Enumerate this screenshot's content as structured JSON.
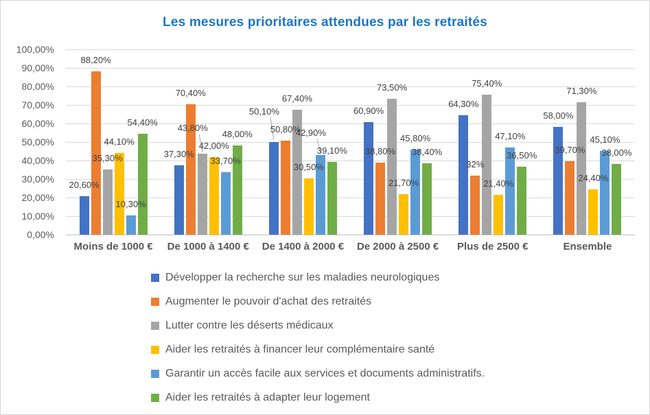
{
  "window": {
    "background": "#FFFFFF",
    "border_color": "#D6D6D6"
  },
  "chart_data": {
    "type": "bar",
    "title": "Les mesures prioritaires attendues par les retraités",
    "title_color": "#1B76C6",
    "xlabel": "",
    "ylabel": "",
    "ylim": [
      0,
      100
    ],
    "y_ticks": [
      "0,00%",
      "10,00%",
      "20,00%",
      "30,00%",
      "40,00%",
      "50,00%",
      "60,00%",
      "70,00%",
      "80,00%",
      "90,00%",
      "100,00%"
    ],
    "grid": true,
    "legend_position": "bottom-left",
    "gridline_color": "#D9D9D9",
    "axisline_color": "#BFBFBF",
    "axis_text_color": "#595959",
    "label_text_color": "#404040",
    "leader_color": "#A6A6A6",
    "categories": [
      "Moins de 1000 €",
      "De 1000 à 1400 €",
      "De 1400 à 2000 €",
      "De 2000 à 2500 €",
      "Plus de 2500 €",
      "Ensemble"
    ],
    "series": [
      {
        "name": "Développer la recherche sur les maladies neurologiques",
        "color": "#4472C4",
        "values": [
          20.6,
          37.3,
          50.1,
          60.9,
          64.3,
          58.0
        ],
        "labels": [
          "20,60%",
          "37,30%",
          "50,10%",
          "60,90%",
          "64,30%",
          "58,00%"
        ]
      },
      {
        "name": "Augmenter le pouvoir d'achat des retraités",
        "color": "#ED7D31",
        "values": [
          88.2,
          70.4,
          50.8,
          38.8,
          32.0,
          39.7
        ],
        "labels": [
          "88,20%",
          "70,40%",
          "50,80%",
          "38,80%",
          "32%",
          "39,70%"
        ]
      },
      {
        "name": "Lutter contre les déserts médicaux",
        "color": "#A5A5A5",
        "values": [
          35.3,
          43.8,
          67.4,
          73.5,
          75.4,
          71.3
        ],
        "labels": [
          "35,30%",
          "43,80%",
          "67,40%",
          "73,50%",
          "75,40%",
          "71,30%"
        ]
      },
      {
        "name": "Aider les retraités à financer leur complémentaire santé",
        "color": "#FFC000",
        "values": [
          44.1,
          42.0,
          30.5,
          21.7,
          21.4,
          24.4
        ],
        "labels": [
          "44,10%",
          "42,00%",
          "30,50%",
          "21,70%",
          "21,40%",
          "24,40%"
        ]
      },
      {
        "name": "Garantir un accès facile aux services et documents administratifs.",
        "color": "#5B9BD5",
        "values": [
          10.3,
          33.7,
          42.9,
          45.8,
          47.1,
          45.1
        ],
        "labels": [
          "10,30%",
          "33,70%",
          "42,90%",
          "45,80%",
          "47,10%",
          "45,10%"
        ]
      },
      {
        "name": "Aider les retraités à adapter leur logement",
        "color": "#70AD47",
        "values": [
          54.4,
          48.0,
          39.1,
          38.4,
          36.5,
          38.0
        ],
        "labels": [
          "54,40%",
          "48,00%",
          "39,10%",
          "38,40%",
          "36,50%",
          "38,00%"
        ]
      }
    ]
  }
}
